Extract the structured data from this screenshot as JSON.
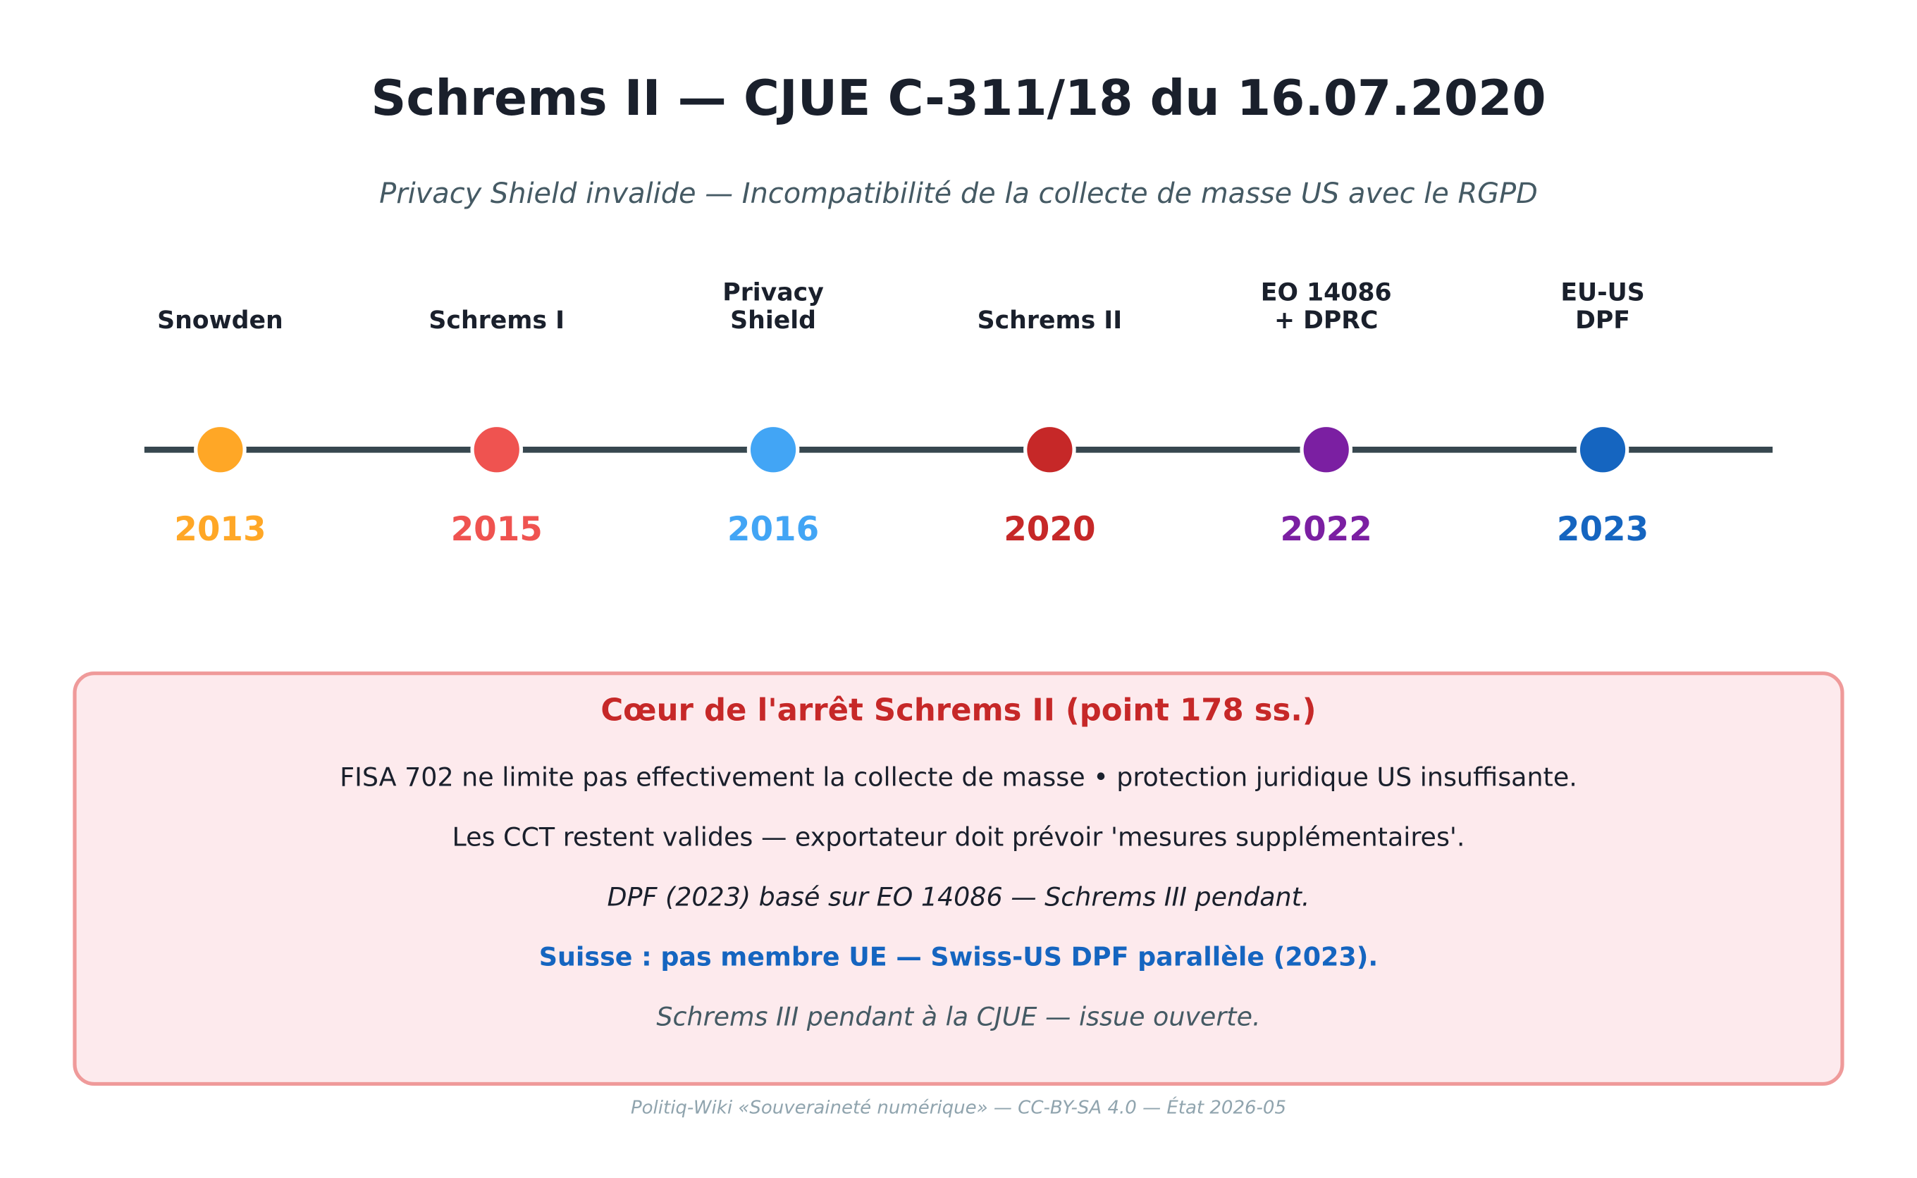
{
  "title": "Schrems II — CJUE C-311/18 du 16.07.2020",
  "subtitle": "Privacy Shield invalide — Incompatibilité de la collecte de masse US avec le RGPD",
  "events": [
    {
      "label": [
        "Snowden"
      ],
      "year": "2013",
      "color": "#ffa726"
    },
    {
      "label": [
        "Schrems I"
      ],
      "year": "2015",
      "color": "#ef5350"
    },
    {
      "label": [
        "Privacy",
        "Shield"
      ],
      "year": "2016",
      "color": "#42a5f5"
    },
    {
      "label": [
        "Schrems II"
      ],
      "year": "2020",
      "color": "#c62828"
    },
    {
      "label": [
        "EO 14086",
        "+ DPRC"
      ],
      "year": "2022",
      "color": "#7b1fa2"
    },
    {
      "label": [
        "EU-US",
        "DPF"
      ],
      "year": "2023",
      "color": "#1565c0"
    }
  ],
  "box": {
    "title": "Cœur de l'arrêt Schrems II (point 178 ss.)",
    "lines": [
      {
        "text": "FISA 702 ne limite pas effectivement la collecte de masse • protection juridique US insuffisante.",
        "style": "normal",
        "color": "#1a202c"
      },
      {
        "text": "Les CCT restent valides — exportateur doit prévoir 'mesures supplémentaires'.",
        "style": "normal",
        "color": "#1a202c"
      },
      {
        "text": "DPF (2023) basé sur EO 14086 — Schrems III pendant.",
        "style": "italic",
        "color": "#1a202c"
      },
      {
        "text": "Suisse : pas membre UE — Swiss-US DPF parallèle (2023).",
        "style": "bold",
        "color": "#1565c0"
      },
      {
        "text": "Schrems III pendant à la CJUE — issue ouverte.",
        "style": "italic",
        "color": "#455a64"
      }
    ]
  },
  "footer": "Politiq-Wiki «Souveraineté numérique» — CC-BY-SA 4.0 — État 2026-05"
}
